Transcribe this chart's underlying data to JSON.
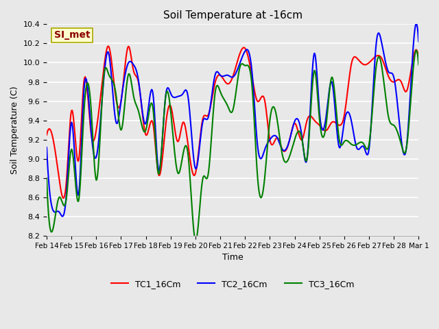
{
  "title": "Soil Temperature at -16cm",
  "xlabel": "Time",
  "ylabel": "Soil Temperature (C)",
  "ylim": [
    8.2,
    10.4
  ],
  "annotation_text": "SI_met",
  "annotation_box_color": "#ffffcc",
  "annotation_text_color": "#8b0000",
  "bg_color": "#e8e8e8",
  "plot_bg_color": "#e8e8e8",
  "grid_color": "#ffffff",
  "legend_entries": [
    "TC1_16Cm",
    "TC2_16Cm",
    "TC3_16Cm"
  ],
  "line_colors": [
    "red",
    "blue",
    "green"
  ],
  "x_tick_labels": [
    "Feb 14",
    "Feb 15",
    "Feb 16",
    "Feb 17",
    "Feb 18",
    "Feb 19",
    "Feb 20",
    "Feb 21",
    "Feb 22",
    "Feb 23",
    "Feb 24",
    "Feb 25",
    "Feb 26",
    "Feb 27",
    "Feb 28",
    "Mar 1"
  ],
  "TC1_knots": [
    0,
    0.3,
    0.5,
    0.8,
    1.0,
    1.3,
    1.5,
    1.8,
    2.0,
    2.3,
    2.5,
    2.8,
    3.0,
    3.3,
    3.5,
    3.7,
    4.0,
    4.3,
    4.5,
    4.8,
    5.0,
    5.3,
    5.5,
    5.7,
    6.0,
    6.3,
    6.5,
    6.8,
    7.0,
    7.3,
    7.5,
    7.8,
    8.0,
    8.3,
    8.5,
    8.8,
    9.0,
    9.3,
    9.5,
    9.8,
    10.0,
    10.3,
    10.5,
    10.8,
    11.0,
    11.3,
    11.5,
    11.8,
    12.0,
    12.3,
    12.5,
    12.8,
    13.0,
    13.3,
    13.5,
    13.8,
    14.0,
    14.3,
    14.5,
    14.8,
    15.0
  ],
  "TC1_vals": [
    9.25,
    9.15,
    8.8,
    8.78,
    9.5,
    9.0,
    9.8,
    9.25,
    9.3,
    9.93,
    10.17,
    9.62,
    9.6,
    10.17,
    9.92,
    9.8,
    9.25,
    9.35,
    8.85,
    9.35,
    9.55,
    9.18,
    9.38,
    9.15,
    8.85,
    9.42,
    9.45,
    9.8,
    9.87,
    9.78,
    9.85,
    10.1,
    10.15,
    9.83,
    9.6,
    9.6,
    9.2,
    9.22,
    9.1,
    9.2,
    9.37,
    9.2,
    9.4,
    9.4,
    9.35,
    9.3,
    9.38,
    9.35,
    9.45,
    10.0,
    10.05,
    9.98,
    10.0,
    10.07,
    10.05,
    9.85,
    9.8,
    9.8,
    9.7,
    10.07,
    10.05
  ],
  "TC2_knots": [
    0,
    0.3,
    0.5,
    0.8,
    1.0,
    1.3,
    1.5,
    1.8,
    2.0,
    2.3,
    2.5,
    2.8,
    3.0,
    3.3,
    3.5,
    3.7,
    4.0,
    4.3,
    4.5,
    4.8,
    5.0,
    5.3,
    5.5,
    5.7,
    6.0,
    6.3,
    6.5,
    6.8,
    7.0,
    7.3,
    7.5,
    7.8,
    8.0,
    8.3,
    8.5,
    8.8,
    9.0,
    9.3,
    9.5,
    9.8,
    10.0,
    10.3,
    10.5,
    10.8,
    11.0,
    11.3,
    11.5,
    11.8,
    12.0,
    12.3,
    12.5,
    12.8,
    13.0,
    13.3,
    13.5,
    13.8,
    14.0,
    14.3,
    14.5,
    14.8,
    15.0
  ],
  "TC2_vals": [
    9.12,
    8.45,
    8.45,
    8.65,
    9.38,
    8.65,
    9.7,
    9.27,
    9.02,
    9.82,
    10.1,
    9.38,
    9.6,
    10.0,
    9.98,
    9.82,
    9.37,
    9.65,
    8.9,
    9.66,
    9.68,
    9.65,
    9.68,
    9.65,
    8.9,
    9.39,
    9.42,
    9.88,
    9.87,
    9.87,
    9.85,
    10.0,
    10.12,
    9.85,
    9.15,
    9.1,
    9.2,
    9.22,
    9.1,
    9.2,
    9.39,
    9.22,
    9.0,
    10.1,
    9.5,
    9.5,
    9.8,
    9.12,
    9.38,
    9.38,
    9.12,
    9.12,
    9.1,
    10.22,
    10.22,
    9.9,
    9.85,
    9.2,
    9.1,
    10.22,
    10.22
  ],
  "TC3_knots": [
    0,
    0.3,
    0.5,
    0.8,
    1.0,
    1.3,
    1.5,
    1.8,
    2.0,
    2.3,
    2.5,
    2.8,
    3.0,
    3.3,
    3.5,
    3.7,
    4.0,
    4.3,
    4.5,
    4.8,
    5.0,
    5.3,
    5.5,
    5.7,
    6.0,
    6.3,
    6.5,
    6.8,
    7.0,
    7.3,
    7.5,
    7.8,
    8.0,
    8.3,
    8.5,
    8.8,
    9.0,
    9.3,
    9.5,
    9.8,
    10.0,
    10.3,
    10.5,
    10.8,
    11.0,
    11.3,
    11.5,
    11.8,
    12.0,
    12.3,
    12.5,
    12.8,
    13.0,
    13.3,
    13.5,
    13.8,
    14.0,
    14.3,
    14.5,
    14.8,
    15.0
  ],
  "TC3_vals": [
    8.8,
    8.33,
    8.6,
    8.6,
    9.1,
    8.58,
    9.47,
    9.49,
    8.78,
    9.85,
    9.88,
    9.66,
    9.3,
    9.88,
    9.66,
    9.5,
    9.3,
    9.5,
    8.85,
    9.65,
    9.5,
    8.85,
    9.05,
    9.05,
    8.15,
    8.8,
    8.82,
    9.7,
    9.7,
    9.55,
    9.5,
    9.96,
    9.97,
    9.7,
    8.83,
    8.82,
    9.4,
    9.4,
    9.05,
    9.03,
    9.2,
    9.2,
    9.0,
    9.92,
    9.42,
    9.42,
    9.85,
    9.2,
    9.18,
    9.15,
    9.15,
    9.15,
    9.15,
    9.98,
    9.98,
    9.42,
    9.35,
    9.15,
    9.1,
    9.98,
    9.98
  ]
}
